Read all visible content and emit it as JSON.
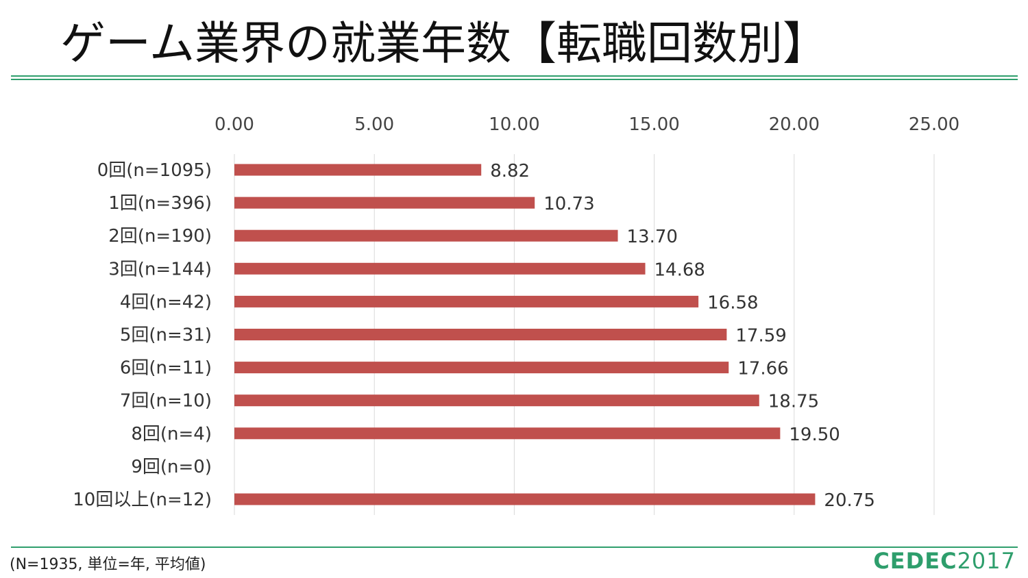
{
  "title": "ゲーム業界の就業年数【転職回数別】",
  "note": "(N=1935, 単位=年, 平均値)",
  "logo": {
    "part1": "CEDEC",
    "part2": "2017"
  },
  "colors": {
    "accent": "#2e9e6c",
    "bar": "#c0504d",
    "grid": "#d9d9d9"
  },
  "chart_data": {
    "type": "bar",
    "orientation": "horizontal",
    "categories": [
      "0回(n=1095)",
      "1回(n=396)",
      "2回(n=190)",
      "3回(n=144)",
      "4回(n=42)",
      "5回(n=31)",
      "6回(n=11)",
      "7回(n=10)",
      "8回(n=4)",
      "9回(n=0)",
      "10回以上(n=12)"
    ],
    "values": [
      8.82,
      10.73,
      13.7,
      14.68,
      16.58,
      17.59,
      17.66,
      18.75,
      19.5,
      null,
      20.75
    ],
    "value_labels": [
      "8.82",
      "10.73",
      "13.70",
      "14.68",
      "16.58",
      "17.59",
      "17.66",
      "18.75",
      "19.50",
      "",
      "20.75"
    ],
    "xlim": [
      0,
      25
    ],
    "xticks": [
      "0.00",
      "5.00",
      "10.00",
      "15.00",
      "20.00",
      "25.00"
    ],
    "xtick_values": [
      0,
      5,
      10,
      15,
      20,
      25
    ],
    "axis_position": "top",
    "grid": true
  }
}
